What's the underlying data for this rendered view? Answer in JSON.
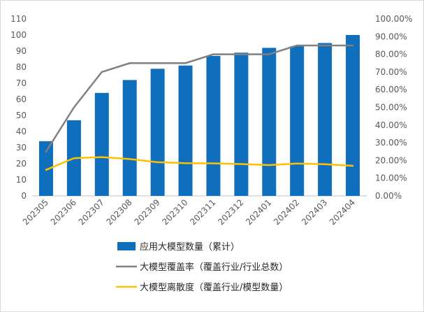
{
  "chart_data": {
    "type": "bar",
    "categories": [
      "202305",
      "202306",
      "202307",
      "202308",
      "202309",
      "202310",
      "202311",
      "202312",
      "202401",
      "202402",
      "202403",
      "202404"
    ],
    "series": [
      {
        "name": "应用大模型数量（累计）",
        "kind": "bar",
        "axis": "left",
        "color": "#0f6fbd",
        "values": [
          34,
          47,
          64,
          72,
          79,
          81,
          87,
          89,
          92,
          93,
          95,
          100
        ]
      },
      {
        "name": "大模型覆盖率（覆盖行业/行业总数）",
        "kind": "line",
        "axis": "right",
        "color": "#808080",
        "values": [
          0.25,
          0.5,
          0.7,
          0.75,
          0.75,
          0.75,
          0.8,
          0.8,
          0.8,
          0.85,
          0.85,
          0.85
        ]
      },
      {
        "name": "大模型离散度（覆盖行业/模型数量）",
        "kind": "line",
        "axis": "right",
        "color": "#ffc000",
        "values": [
          0.147,
          0.213,
          0.219,
          0.208,
          0.19,
          0.185,
          0.184,
          0.18,
          0.174,
          0.183,
          0.179,
          0.17
        ]
      }
    ],
    "y_left": {
      "ylim": [
        0,
        110
      ],
      "ticks": [
        "0",
        "10",
        "20",
        "30",
        "40",
        "50",
        "60",
        "70",
        "80",
        "90",
        "100",
        "110"
      ]
    },
    "y_right": {
      "ylim": [
        0,
        1
      ],
      "ticks": [
        "0.00%",
        "10.00%",
        "20.00%",
        "30.00%",
        "40.00%",
        "50.00%",
        "60.00%",
        "70.00%",
        "80.00%",
        "90.00%",
        "100.00%"
      ]
    },
    "grid": false,
    "legend_placement": "bottom"
  }
}
